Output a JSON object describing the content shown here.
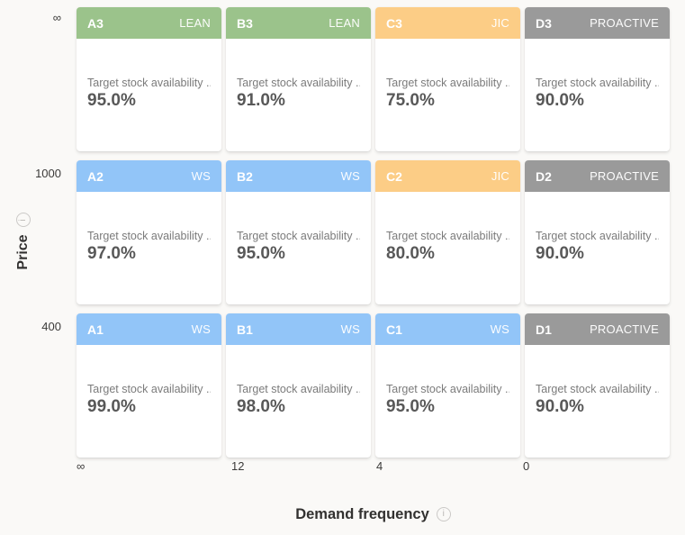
{
  "page": {
    "background": "#faf9f7"
  },
  "y_axis": {
    "label": "Price",
    "ticks": [
      "∞",
      "1000",
      "400"
    ]
  },
  "x_axis": {
    "label": "Demand frequency",
    "ticks": [
      "∞",
      "12",
      "4",
      "0"
    ]
  },
  "metric_label": "Target stock availability ...",
  "strategy_colors": {
    "LEAN": "#9bc38b",
    "WS": "#92c5f8",
    "JIC": "#fccd86",
    "PROACTIVE": "#9a9a9a"
  },
  "matrix": {
    "rows": [
      {
        "cells": [
          {
            "code": "A3",
            "strategy": "LEAN",
            "value": "95.0%",
            "color": "#9bc38b"
          },
          {
            "code": "B3",
            "strategy": "LEAN",
            "value": "91.0%",
            "color": "#9bc38b"
          },
          {
            "code": "C3",
            "strategy": "JIC",
            "value": "75.0%",
            "color": "#fccd86"
          },
          {
            "code": "D3",
            "strategy": "PROACTIVE",
            "value": "90.0%",
            "color": "#9a9a9a"
          }
        ]
      },
      {
        "cells": [
          {
            "code": "A2",
            "strategy": "WS",
            "value": "97.0%",
            "color": "#92c5f8"
          },
          {
            "code": "B2",
            "strategy": "WS",
            "value": "95.0%",
            "color": "#92c5f8"
          },
          {
            "code": "C2",
            "strategy": "JIC",
            "value": "80.0%",
            "color": "#fccd86"
          },
          {
            "code": "D2",
            "strategy": "PROACTIVE",
            "value": "90.0%",
            "color": "#9a9a9a"
          }
        ]
      },
      {
        "cells": [
          {
            "code": "A1",
            "strategy": "WS",
            "value": "99.0%",
            "color": "#92c5f8"
          },
          {
            "code": "B1",
            "strategy": "WS",
            "value": "98.0%",
            "color": "#92c5f8"
          },
          {
            "code": "C1",
            "strategy": "WS",
            "value": "95.0%",
            "color": "#92c5f8"
          },
          {
            "code": "D1",
            "strategy": "PROACTIVE",
            "value": "90.0%",
            "color": "#9a9a9a"
          }
        ]
      }
    ]
  },
  "chart_data": {
    "type": "heatmap",
    "title": "",
    "xlabel": "Demand frequency",
    "ylabel": "Price",
    "x_tick_labels": [
      "∞",
      "12",
      "4",
      "0"
    ],
    "y_tick_labels": [
      "∞",
      "1000",
      "400"
    ],
    "legend": "off",
    "grid": "off",
    "metric": "Target stock availability",
    "cells": [
      {
        "code": "A3",
        "strategy": "LEAN",
        "value_pct": 95.0
      },
      {
        "code": "B3",
        "strategy": "LEAN",
        "value_pct": 91.0
      },
      {
        "code": "C3",
        "strategy": "JIC",
        "value_pct": 75.0
      },
      {
        "code": "D3",
        "strategy": "PROACTIVE",
        "value_pct": 90.0
      },
      {
        "code": "A2",
        "strategy": "WS",
        "value_pct": 97.0
      },
      {
        "code": "B2",
        "strategy": "WS",
        "value_pct": 95.0
      },
      {
        "code": "C2",
        "strategy": "JIC",
        "value_pct": 80.0
      },
      {
        "code": "D2",
        "strategy": "PROACTIVE",
        "value_pct": 90.0
      },
      {
        "code": "A1",
        "strategy": "WS",
        "value_pct": 99.0
      },
      {
        "code": "B1",
        "strategy": "WS",
        "value_pct": 98.0
      },
      {
        "code": "C1",
        "strategy": "WS",
        "value_pct": 95.0
      },
      {
        "code": "D1",
        "strategy": "PROACTIVE",
        "value_pct": 90.0
      }
    ]
  }
}
